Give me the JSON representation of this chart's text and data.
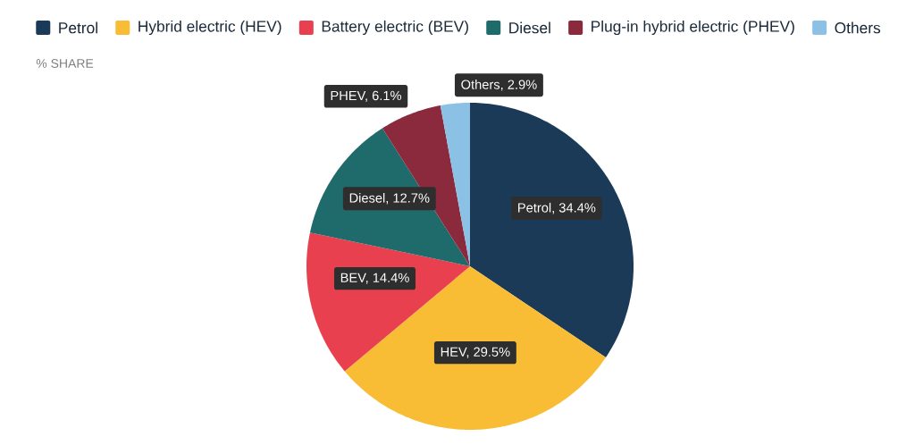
{
  "chart_data": {
    "type": "pie",
    "subtitle": "% SHARE",
    "legend": "top",
    "categories": [
      "Petrol",
      "Hybrid electric (HEV)",
      "Battery electric (BEV)",
      "Diesel",
      "Plug-in hybrid electric (PHEV)",
      "Others"
    ],
    "values": [
      34.4,
      29.5,
      14.4,
      12.7,
      6.1,
      2.9
    ],
    "colors": [
      "#1b3a57",
      "#f8bd35",
      "#e8404e",
      "#1f6b6b",
      "#8b2a3c",
      "#8cc1e6"
    ],
    "value_labels": [
      "Petrol, 34.4%",
      "HEV, 29.5%",
      "BEV, 14.4%",
      "Diesel, 12.7%",
      "PHEV, 6.1%",
      "Others, 2.9%"
    ]
  }
}
